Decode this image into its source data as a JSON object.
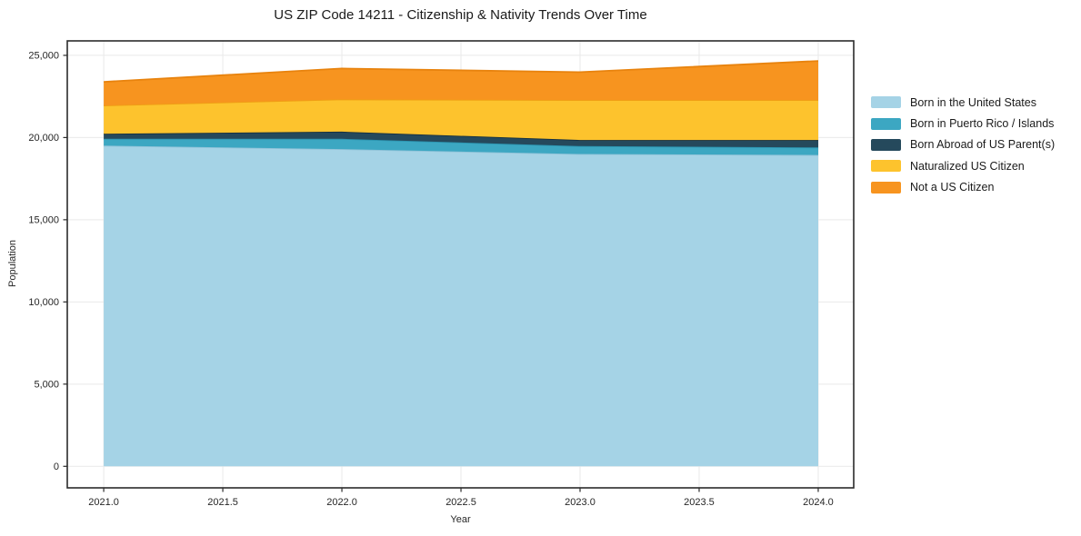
{
  "title": "US ZIP Code 14211 - Citizenship & Nativity Trends Over Time",
  "chart_data": {
    "type": "area",
    "stacked": true,
    "title": "US ZIP Code 14211 - Citizenship & Nativity Trends Over Time",
    "xlabel": "Year",
    "ylabel": "Population",
    "x": [
      2021.0,
      2022.0,
      2023.0,
      2024.0
    ],
    "series": [
      {
        "name": "Born in the United States",
        "values": [
          19510,
          19300,
          19000,
          18940
        ],
        "color": "#a5d3e6",
        "line_color": "#8fc2d8"
      },
      {
        "name": "Born in Puerto Rico / Islands",
        "values": [
          420,
          620,
          480,
          460
        ],
        "color": "#3ca7c2",
        "line_color": "#2b93af"
      },
      {
        "name": "Born Abroad of US Parent(s)",
        "values": [
          300,
          440,
          370,
          450
        ],
        "color": "#25495c",
        "line_color": "#16303f"
      },
      {
        "name": "Naturalized US Citizen",
        "values": [
          1720,
          1960,
          2430,
          2430
        ],
        "color": "#fdc32d",
        "line_color": "#ef9f14"
      },
      {
        "name": "Not a US Citizen",
        "values": [
          1440,
          1880,
          1700,
          2380
        ],
        "color": "#f7941f",
        "line_color": "#e8830e"
      }
    ],
    "x_ticks": [
      "2021.0",
      "2021.5",
      "2022.0",
      "2022.5",
      "2023.0",
      "2023.5",
      "2024.0"
    ],
    "x_tick_values": [
      2021.0,
      2021.5,
      2022.0,
      2022.5,
      2023.0,
      2023.5,
      2024.0
    ],
    "y_ticks": [
      "0",
      "5,000",
      "10,000",
      "15,000",
      "20,000",
      "25,000"
    ],
    "y_tick_values": [
      0,
      5000,
      10000,
      15000,
      20000,
      25000
    ],
    "xlim": [
      2020.847,
      2024.149
    ],
    "ylim": [
      -1310,
      25880
    ],
    "grid": true,
    "grid_color": "#e9e9e9",
    "frame_color": "#2b2b2b",
    "tick_label_color": "#262626",
    "legend_position": "right"
  }
}
